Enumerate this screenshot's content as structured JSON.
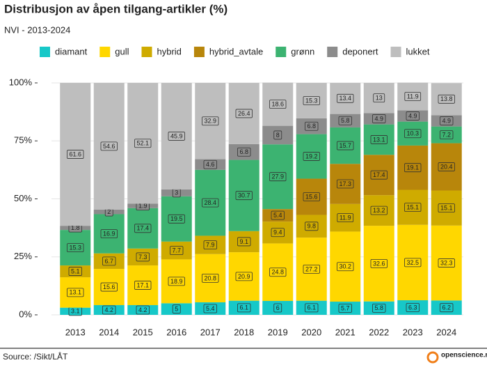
{
  "chart_data": {
    "type": "stacked_bar",
    "title": "Distribusjon av åpen tilgang-artikler (%)",
    "subtitle": "NVI - 2013-2024",
    "source": "Source: /Sikt/LÅT",
    "logo_text": "openscience.no",
    "categories": [
      "2013",
      "2014",
      "2015",
      "2016",
      "2017",
      "2018",
      "2019",
      "2020",
      "2021",
      "2022",
      "2023",
      "2024"
    ],
    "series": [
      {
        "name": "diamant",
        "color": "#17c8c8",
        "values": [
          3.1,
          4.2,
          4.2,
          5,
          5.4,
          6.1,
          6,
          6.1,
          5.7,
          5.8,
          6.3,
          6.2
        ]
      },
      {
        "name": "gull",
        "color": "#ffd700",
        "values": [
          13.1,
          15.6,
          17.1,
          18.9,
          20.8,
          20.9,
          24.8,
          27.2,
          30.2,
          32.6,
          32.5,
          32.3
        ]
      },
      {
        "name": "hybrid",
        "color": "#cfab00",
        "values": [
          5.1,
          6.7,
          7.3,
          7.7,
          7.9,
          9.1,
          9.4,
          9.8,
          11.9,
          13.2,
          15.1,
          15.1
        ]
      },
      {
        "name": "hybrid_avtale",
        "color": "#b8860b",
        "values": [
          null,
          null,
          null,
          null,
          null,
          null,
          5.4,
          15.6,
          17.3,
          17.4,
          19.1,
          20.4
        ]
      },
      {
        "name": "grønn",
        "color": "#3cb371",
        "values": [
          15.3,
          16.9,
          17.4,
          19.5,
          28.4,
          30.7,
          27.9,
          19.2,
          15.7,
          13.1,
          10.3,
          7.2
        ]
      },
      {
        "name": "deponert",
        "color": "#8c8c8c",
        "values": [
          1.8,
          2,
          1.9,
          3,
          4.6,
          6.8,
          8,
          6.8,
          5.8,
          4.9,
          4.9,
          4.9
        ]
      },
      {
        "name": "lukket",
        "color": "#bebebe",
        "values": [
          61.6,
          54.6,
          52.1,
          45.9,
          32.9,
          26.4,
          18.6,
          15.3,
          13.4,
          13,
          11.9,
          13.8
        ]
      }
    ],
    "ylim": [
      0,
      100
    ],
    "yticks": [
      {
        "value": 0,
        "label": "0%"
      },
      {
        "value": 25,
        "label": "25%"
      },
      {
        "value": 50,
        "label": "50%"
      },
      {
        "value": 75,
        "label": "75%"
      },
      {
        "value": 100,
        "label": "100%"
      }
    ],
    "grid": true
  }
}
